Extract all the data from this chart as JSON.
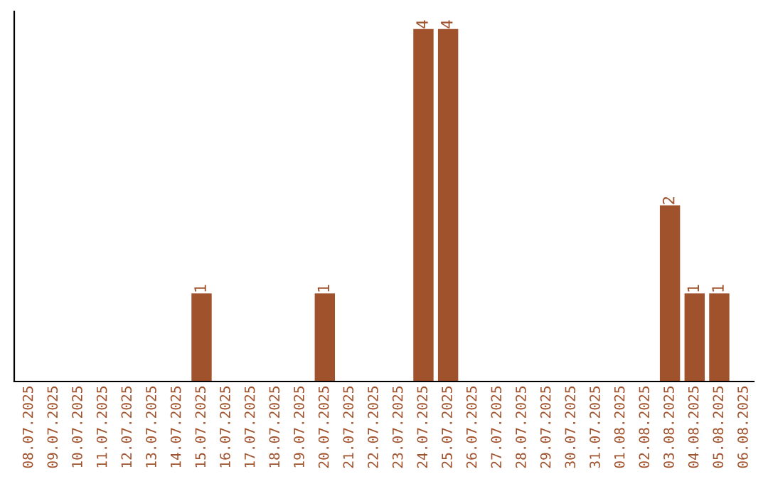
{
  "chart_data": {
    "type": "bar",
    "categories": [
      "08.07.2025",
      "09.07.2025",
      "10.07.2025",
      "11.07.2025",
      "12.07.2025",
      "13.07.2025",
      "14.07.2025",
      "15.07.2025",
      "16.07.2025",
      "17.07.2025",
      "18.07.2025",
      "19.07.2025",
      "20.07.2025",
      "21.07.2025",
      "22.07.2025",
      "23.07.2025",
      "24.07.2025",
      "25.07.2025",
      "26.07.2025",
      "27.07.2025",
      "28.07.2025",
      "29.07.2025",
      "30.07.2025",
      "31.07.2025",
      "01.08.2025",
      "02.08.2025",
      "03.08.2025",
      "04.08.2025",
      "05.08.2025",
      "06.08.2025"
    ],
    "values": [
      0,
      0,
      0,
      0,
      0,
      0,
      0,
      1,
      0,
      0,
      0,
      0,
      1,
      0,
      0,
      0,
      4,
      4,
      0,
      0,
      0,
      0,
      0,
      0,
      0,
      0,
      2,
      1,
      1,
      0
    ],
    "value_labels": [
      null,
      null,
      null,
      null,
      null,
      null,
      null,
      "1",
      null,
      null,
      null,
      null,
      "1",
      null,
      null,
      null,
      "4",
      "4",
      null,
      null,
      null,
      null,
      null,
      null,
      null,
      null,
      "2",
      "1",
      "1",
      null
    ],
    "color": "#a0522d",
    "tick_labels": "x",
    "grid": false,
    "legend": false
  }
}
